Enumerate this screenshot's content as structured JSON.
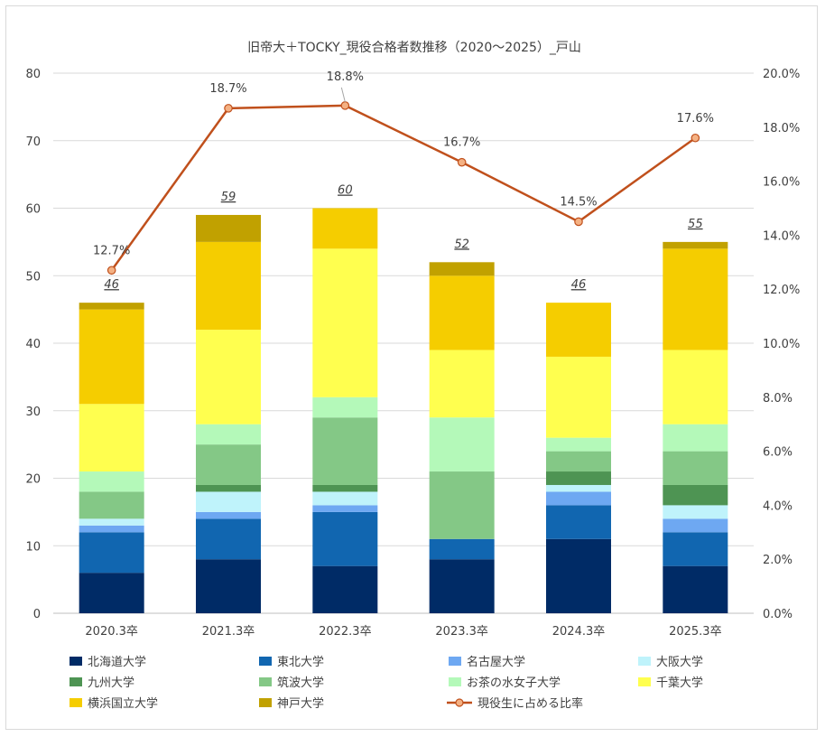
{
  "chart_data": {
    "type": "bar",
    "stacked": true,
    "title": "旧帝大＋TOCKY_現役合格者数推移（2020～2025）_戸山",
    "categories": [
      "2020.3卒",
      "2021.3卒",
      "2022.3卒",
      "2023.3卒",
      "2024.3卒",
      "2025.3卒"
    ],
    "ylim": [
      0,
      80
    ],
    "yticks": [
      0,
      10,
      20,
      30,
      40,
      50,
      60,
      70,
      80
    ],
    "y2lim": [
      0,
      20
    ],
    "y2ticks": [
      "0.0%",
      "2.0%",
      "4.0%",
      "6.0%",
      "8.0%",
      "10.0%",
      "12.0%",
      "14.0%",
      "16.0%",
      "18.0%",
      "20.0%"
    ],
    "grid": true,
    "legend_position": "bottom",
    "series": [
      {
        "name": "北海道大学",
        "color": "#002b66",
        "values": [
          6,
          8,
          7,
          8,
          11,
          7
        ]
      },
      {
        "name": "東北大学",
        "color": "#1166b0",
        "values": [
          6,
          6,
          8,
          3,
          5,
          5
        ]
      },
      {
        "name": "名古屋大学",
        "color": "#6ea8f2",
        "values": [
          1,
          1,
          1,
          0,
          2,
          2
        ]
      },
      {
        "name": "大阪大学",
        "color": "#bff3fb",
        "values": [
          1,
          3,
          2,
          0,
          1,
          2
        ]
      },
      {
        "name": "九州大学",
        "color": "#4e9453",
        "values": [
          0,
          1,
          1,
          0,
          2,
          3
        ]
      },
      {
        "name": "筑波大学",
        "color": "#84c886",
        "values": [
          4,
          6,
          10,
          10,
          3,
          5
        ]
      },
      {
        "name": "お茶の水女子大学",
        "color": "#b4f9b9",
        "values": [
          3,
          3,
          3,
          8,
          2,
          4
        ]
      },
      {
        "name": "千葉大学",
        "color": "#ffff4f",
        "values": [
          10,
          14,
          22,
          10,
          12,
          11
        ]
      },
      {
        "name": "横浜国立大学",
        "color": "#f5cd00",
        "values": [
          14,
          13,
          6,
          11,
          8,
          15
        ]
      },
      {
        "name": "神戸大学",
        "color": "#c1a100",
        "values": [
          1,
          4,
          0,
          2,
          0,
          1
        ]
      }
    ],
    "totals": [
      "46",
      "59",
      "60",
      "52",
      "46",
      "55"
    ],
    "line_series": {
      "name": "現役生に占める比率",
      "color": "#c0501c",
      "axis": "secondary",
      "values": [
        12.7,
        18.7,
        18.8,
        16.7,
        14.5,
        17.6
      ],
      "labels": [
        "12.7%",
        "18.7%",
        "18.8%",
        "16.7%",
        "14.5%",
        "17.6%"
      ]
    }
  }
}
